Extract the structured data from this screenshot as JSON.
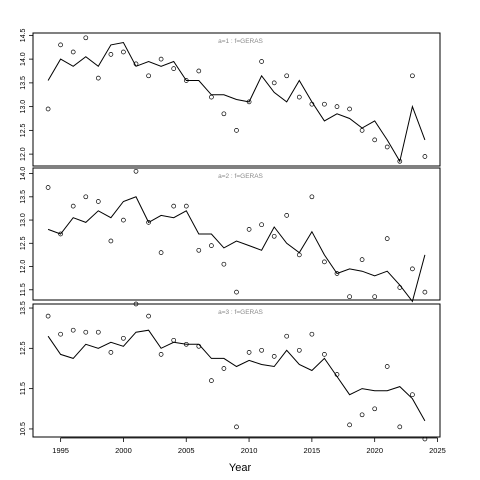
{
  "chart_data": [
    {
      "type": "line",
      "panel_label": "a=1  :  f=GERAS",
      "x": [
        1994,
        1995,
        1996,
        1997,
        1998,
        1999,
        2000,
        2001,
        2002,
        2003,
        2004,
        2005,
        2006,
        2007,
        2008,
        2009,
        2010,
        2011,
        2012,
        2013,
        2014,
        2015,
        2016,
        2017,
        2018,
        2019,
        2020,
        2021,
        2022,
        2023,
        2024
      ],
      "series": [
        {
          "kind": "line",
          "values": [
            13.55,
            14.0,
            13.85,
            14.05,
            13.85,
            14.3,
            14.35,
            13.85,
            13.95,
            13.85,
            13.95,
            13.55,
            13.55,
            13.25,
            13.25,
            13.15,
            13.1,
            13.65,
            13.3,
            13.1,
            13.55,
            13.1,
            12.7,
            12.85,
            12.75,
            12.55,
            12.7,
            12.3,
            11.85,
            13.0,
            12.3
          ]
        },
        {
          "kind": "points",
          "values": [
            12.95,
            14.3,
            14.15,
            14.45,
            13.6,
            14.1,
            14.15,
            13.9,
            13.65,
            14.0,
            13.8,
            13.55,
            13.75,
            13.2,
            12.85,
            12.5,
            13.1,
            13.95,
            13.5,
            13.65,
            13.2,
            13.05,
            13.05,
            13.0,
            12.95,
            12.5,
            12.3,
            12.15,
            11.85,
            13.65,
            11.95
          ]
        }
      ],
      "ylim": [
        11.75,
        14.55
      ],
      "yticks": [
        "12.0",
        "12.5",
        "13.0",
        "13.5",
        "14.0",
        "14.5"
      ],
      "ytick_values": [
        12.0,
        12.5,
        13.0,
        13.5,
        14.0,
        14.5
      ]
    },
    {
      "type": "line",
      "panel_label": "a=2  :  f=GERAS",
      "x": [
        1994,
        1995,
        1996,
        1997,
        1998,
        1999,
        2000,
        2001,
        2002,
        2003,
        2004,
        2005,
        2006,
        2007,
        2008,
        2009,
        2010,
        2011,
        2012,
        2013,
        2014,
        2015,
        2016,
        2017,
        2018,
        2019,
        2020,
        2021,
        2022,
        2023,
        2024
      ],
      "series": [
        {
          "kind": "line",
          "values": [
            12.8,
            12.7,
            13.05,
            12.95,
            13.2,
            13.05,
            13.4,
            13.5,
            12.95,
            13.1,
            13.05,
            13.2,
            12.7,
            12.7,
            12.4,
            12.55,
            12.45,
            12.35,
            12.85,
            12.5,
            12.3,
            12.75,
            12.25,
            11.85,
            11.95,
            11.9,
            11.8,
            11.9,
            11.6,
            11.25,
            12.25
          ]
        },
        {
          "kind": "points",
          "values": [
            13.7,
            12.7,
            13.3,
            13.5,
            13.4,
            12.55,
            13.0,
            14.05,
            12.95,
            12.3,
            13.3,
            13.3,
            12.35,
            12.45,
            12.05,
            11.45,
            12.8,
            12.9,
            12.65,
            13.1,
            12.25,
            13.5,
            12.1,
            11.85,
            11.35,
            12.15,
            11.35,
            12.6,
            11.55,
            11.95,
            11.45
          ]
        }
      ],
      "ylim": [
        11.28,
        14.12
      ],
      "yticks": [
        "11.5",
        "12.0",
        "12.5",
        "13.0",
        "13.5",
        "14.0"
      ],
      "ytick_values": [
        11.5,
        12.0,
        12.5,
        13.0,
        13.5,
        14.0
      ]
    },
    {
      "type": "line",
      "panel_label": "a=3  :  f=GERAS",
      "x": [
        1994,
        1995,
        1996,
        1997,
        1998,
        1999,
        2000,
        2001,
        2002,
        2003,
        2004,
        2005,
        2006,
        2007,
        2008,
        2009,
        2010,
        2011,
        2012,
        2013,
        2014,
        2015,
        2016,
        2017,
        2018,
        2019,
        2020,
        2021,
        2022,
        2023,
        2024
      ],
      "series": [
        {
          "kind": "line",
          "values": [
            12.8,
            12.35,
            12.25,
            12.6,
            12.5,
            12.65,
            12.55,
            12.9,
            12.95,
            12.5,
            12.65,
            12.6,
            12.6,
            12.25,
            12.25,
            12.05,
            12.2,
            12.1,
            12.05,
            12.45,
            12.1,
            11.95,
            12.25,
            11.8,
            11.35,
            11.5,
            11.45,
            11.45,
            11.55,
            11.25,
            10.7
          ]
        },
        {
          "kind": "points",
          "values": [
            13.3,
            12.85,
            12.95,
            12.9,
            12.9,
            12.4,
            12.75,
            13.6,
            13.3,
            12.35,
            12.7,
            12.6,
            12.55,
            11.7,
            12.0,
            10.55,
            12.4,
            12.45,
            12.3,
            12.8,
            12.45,
            12.85,
            12.35,
            11.85,
            10.6,
            10.85,
            11.0,
            12.05,
            10.55,
            11.35,
            10.25
          ]
        }
      ],
      "ylim": [
        10.3,
        13.6
      ],
      "yticks": [
        "10.5",
        "11.5",
        "12.5",
        "13.5"
      ],
      "ytick_values": [
        10.5,
        11.5,
        12.5,
        13.5
      ]
    }
  ],
  "x_axis": {
    "label": "Year",
    "ticks": [
      "1995",
      "2000",
      "2005",
      "2010",
      "2015",
      "2020",
      "2025"
    ],
    "tick_values": [
      1995,
      2000,
      2005,
      2010,
      2015,
      2020,
      2025
    ],
    "xlim": [
      1992.8,
      2025.2
    ]
  }
}
